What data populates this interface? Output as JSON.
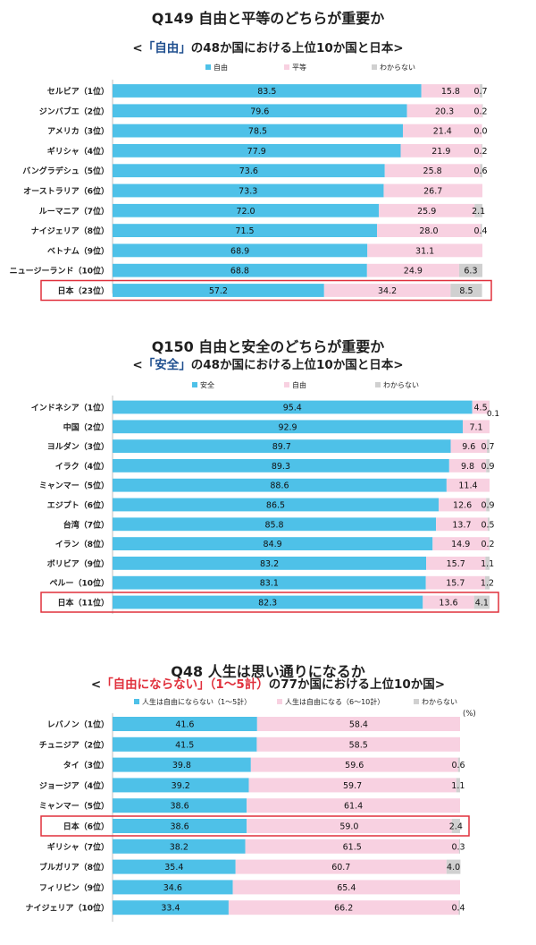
{
  "chart_data": [
    {
      "type": "bar",
      "stacked": true,
      "orientation": "horizontal",
      "title": "Q149 自由と平等のどちらが重要か",
      "subtitle": {
        "pre": "<",
        "hl": "「自由」",
        "post": "の48か国における上位10か国と日本>"
      },
      "legend": [
        "自由",
        "平等",
        "わからない"
      ],
      "legend_position": "top",
      "colors": [
        "#4ec1e8",
        "#f8d1e1",
        "#d0d0d0"
      ],
      "highlight_color": "#e0303c",
      "title_color": "#1f1f1f",
      "hl_color": "#1f4f8f",
      "unit": "",
      "highlight_category": "日本（23位）",
      "categories": [
        "セルビア（1位）",
        "ジンバブエ（2位）",
        "アメリカ（3位）",
        "ギリシャ（4位）",
        "バングラデシュ（5位）",
        "オーストラリア（6位）",
        "ルーマニア（7位）",
        "ナイジェリア（8位）",
        "ベトナム（9位）",
        "ニュージーランド（10位）",
        "日本（23位）"
      ],
      "series": [
        {
          "name": "自由",
          "values": [
            83.5,
            79.6,
            78.5,
            77.9,
            73.6,
            73.3,
            72.0,
            71.5,
            68.9,
            68.8,
            57.2
          ]
        },
        {
          "name": "平等",
          "values": [
            15.8,
            20.3,
            21.4,
            21.9,
            25.8,
            26.7,
            25.9,
            28.0,
            31.1,
            24.9,
            34.2
          ]
        },
        {
          "name": "わからない",
          "values": [
            0.7,
            0.2,
            0.0,
            0.2,
            0.6,
            null,
            2.1,
            0.4,
            null,
            6.3,
            8.5
          ]
        }
      ],
      "labels": [
        [
          "83.5",
          "79.6",
          "78.5",
          "77.9",
          "73.6",
          "73.3",
          "72.0",
          "71.5",
          "68.9",
          "68.8",
          "57.2"
        ],
        [
          "15.8",
          "20.3",
          "21.4",
          "21.9",
          "25.8",
          "26.7",
          "25.9",
          "28.0",
          "31.1",
          "24.9",
          "34.2"
        ],
        [
          "0.7",
          "0.2",
          "0.0",
          "0.2",
          "0.6",
          "",
          "2.1",
          "0.4",
          "",
          "6.3",
          "8.5"
        ]
      ],
      "xlim": [
        0,
        100
      ],
      "grid": false
    },
    {
      "type": "bar",
      "stacked": true,
      "orientation": "horizontal",
      "title": "Q150 自由と安全のどちらが重要か",
      "subtitle": {
        "pre": "<",
        "hl": "「安全」",
        "post": "の48か国における上位10か国と日本>"
      },
      "legend": [
        "安全",
        "自由",
        "わからない"
      ],
      "legend_position": "top",
      "colors": [
        "#4ec1e8",
        "#f8d1e1",
        "#d0d0d0"
      ],
      "highlight_color": "#e0303c",
      "title_color": "#1f1f1f",
      "hl_color": "#1f4f8f",
      "unit": "",
      "highlight_category": "日本（11位）",
      "categories": [
        "インドネシア（1位）",
        "中国（2位）",
        "ヨルダン（3位）",
        "イラク（4位）",
        "ミャンマー（5位）",
        "エジプト（6位）",
        "台湾（7位）",
        "イラン（8位）",
        "ボリビア（9位）",
        "ペルー（10位）",
        "日本（11位）"
      ],
      "series": [
        {
          "name": "安全",
          "values": [
            95.4,
            92.9,
            89.7,
            89.3,
            88.6,
            86.5,
            85.8,
            84.9,
            83.2,
            83.1,
            82.3
          ]
        },
        {
          "name": "自由",
          "values": [
            4.5,
            7.1,
            9.6,
            9.8,
            11.4,
            12.6,
            13.7,
            14.9,
            15.7,
            15.7,
            13.6
          ]
        },
        {
          "name": "わからない",
          "values": [
            0.1,
            null,
            0.7,
            0.9,
            null,
            0.9,
            0.5,
            0.2,
            1.1,
            1.2,
            4.1
          ]
        }
      ],
      "labels": [
        [
          "95.4",
          "92.9",
          "89.7",
          "89.3",
          "88.6",
          "86.5",
          "85.8",
          "84.9",
          "83.2",
          "83.1",
          "82.3"
        ],
        [
          "4.5",
          "7.1",
          "9.6",
          "9.8",
          "11.4",
          "12.6",
          "13.7",
          "14.9",
          "15.7",
          "15.7",
          "13.6"
        ],
        [
          "0.1",
          "",
          "0.7",
          "0.9",
          "",
          "0.9",
          "0.5",
          "0.2",
          "1.1",
          "1.2",
          "4.1"
        ]
      ],
      "xlim": [
        0,
        100
      ],
      "grid": false
    },
    {
      "type": "bar",
      "stacked": true,
      "orientation": "horizontal",
      "title": "Q48 人生は思い通りになるか",
      "subtitle": {
        "pre": "<",
        "hl": "「自由にならない」（1～5計）",
        "post": "の77か国における上位10か国>"
      },
      "legend": [
        "人生は自由にならない（1～5計）",
        "人生は自由になる（6～10計）",
        "わからない"
      ],
      "legend_position": "top",
      "colors": [
        "#4ec1e8",
        "#f8d1e1",
        "#d0d0d0"
      ],
      "highlight_color": "#e0303c",
      "title_color": "#1f1f1f",
      "hl_color": "#e0303c",
      "unit": "(%)",
      "highlight_category": "日本（6位）",
      "categories": [
        "レバノン（1位）",
        "チュニジア（2位）",
        "タイ（3位）",
        "ジョージア（4位）",
        "ミャンマー（5位）",
        "日本（6位）",
        "ギリシャ（7位）",
        "ブルガリア（8位）",
        "フィリピン（9位）",
        "ナイジェリア（10位）"
      ],
      "series": [
        {
          "name": "人生は自由にならない（1～5計）",
          "values": [
            41.6,
            41.5,
            39.8,
            39.2,
            38.6,
            38.6,
            38.2,
            35.4,
            34.6,
            33.4
          ]
        },
        {
          "name": "人生は自由になる（6～10計）",
          "values": [
            58.4,
            58.5,
            59.6,
            59.7,
            61.4,
            59.0,
            61.5,
            60.7,
            65.4,
            66.2
          ]
        },
        {
          "name": "わからない",
          "values": [
            null,
            null,
            0.6,
            1.1,
            null,
            2.4,
            0.3,
            4.0,
            null,
            0.4
          ]
        }
      ],
      "labels": [
        [
          "41.6",
          "41.5",
          "39.8",
          "39.2",
          "38.6",
          "38.6",
          "38.2",
          "35.4",
          "34.6",
          "33.4"
        ],
        [
          "58.4",
          "58.5",
          "59.6",
          "59.7",
          "61.4",
          "59.0",
          "61.5",
          "60.7",
          "65.4",
          "66.2"
        ],
        [
          "",
          "",
          "0.6",
          "1.1",
          "",
          "2.4",
          "0.3",
          "4.0",
          "",
          "0.4"
        ]
      ],
      "xlim": [
        0,
        100
      ],
      "grid": false
    }
  ]
}
